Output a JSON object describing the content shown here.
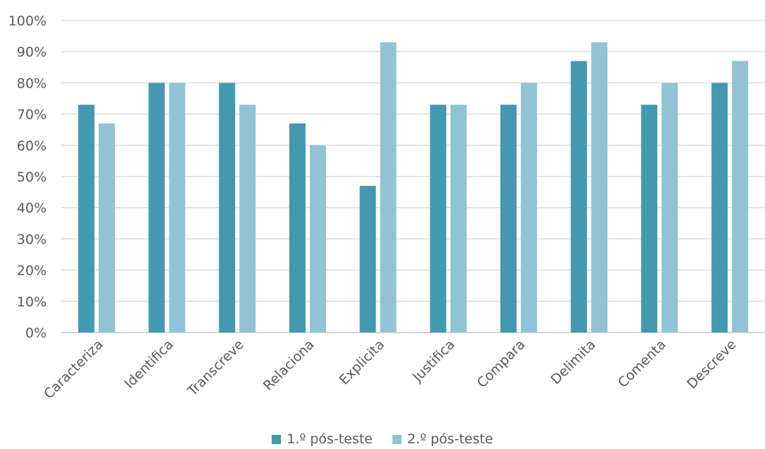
{
  "chart_data": {
    "type": "bar",
    "categories": [
      "Caracteriza",
      "Identifica",
      "Transcreve",
      "Relaciona",
      "Explicita",
      "Justifica",
      "Compara",
      "Delimita",
      "Comenta",
      "Descreve"
    ],
    "series": [
      {
        "name": "1.º pós-teste",
        "color": "#4499b0",
        "values": [
          73,
          80,
          80,
          67,
          47,
          73,
          73,
          87,
          73,
          80
        ]
      },
      {
        "name": "2.º pós-teste",
        "color": "#92c3d4",
        "values": [
          67,
          80,
          73,
          60,
          93,
          73,
          80,
          93,
          80,
          87
        ]
      }
    ],
    "ylim": [
      0,
      100
    ],
    "yticks": [
      "0%",
      "10%",
      "20%",
      "30%",
      "40%",
      "50%",
      "60%",
      "70%",
      "80%",
      "90%",
      "100%"
    ],
    "grid": true,
    "legend_position": "bottom-center",
    "title": "",
    "xlabel": "",
    "ylabel": ""
  }
}
